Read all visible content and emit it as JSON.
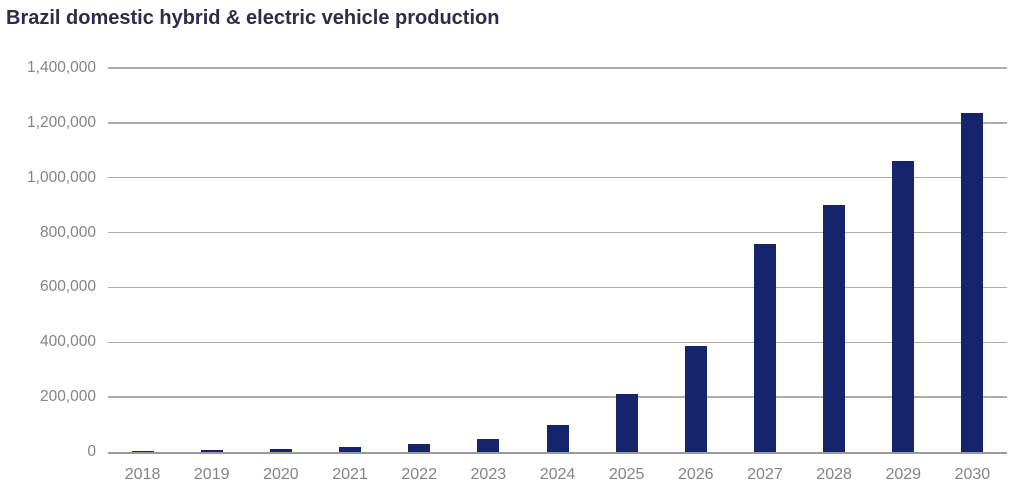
{
  "title": "Brazil domestic hybrid & electric vehicle production",
  "colors": {
    "bar": "#15246B",
    "title_text": "#2E2B4B",
    "tick_text": "#848484",
    "gridline": "#ACACAC",
    "axis_line": "#9A9A9A",
    "background": "#FFFFFF"
  },
  "chart_data": {
    "type": "bar",
    "title": "Brazil domestic hybrid & electric vehicle production",
    "categories": [
      "2018",
      "2019",
      "2020",
      "2021",
      "2022",
      "2023",
      "2024",
      "2025",
      "2026",
      "2027",
      "2028",
      "2029",
      "2030"
    ],
    "values": [
      5000,
      7000,
      12000,
      20000,
      28000,
      48000,
      100000,
      210000,
      385000,
      760000,
      900000,
      1060000,
      1235000
    ],
    "xlabel": "",
    "ylabel": "",
    "ylim": [
      0,
      1400000
    ],
    "ytick_step": 200000,
    "y_tick_labels": [
      "0",
      "200,000",
      "400,000",
      "600,000",
      "800,000",
      "1,000,000",
      "1,200,000",
      "1,400,000"
    ],
    "grid": true,
    "legend": false,
    "bar_color": "#15246B"
  }
}
